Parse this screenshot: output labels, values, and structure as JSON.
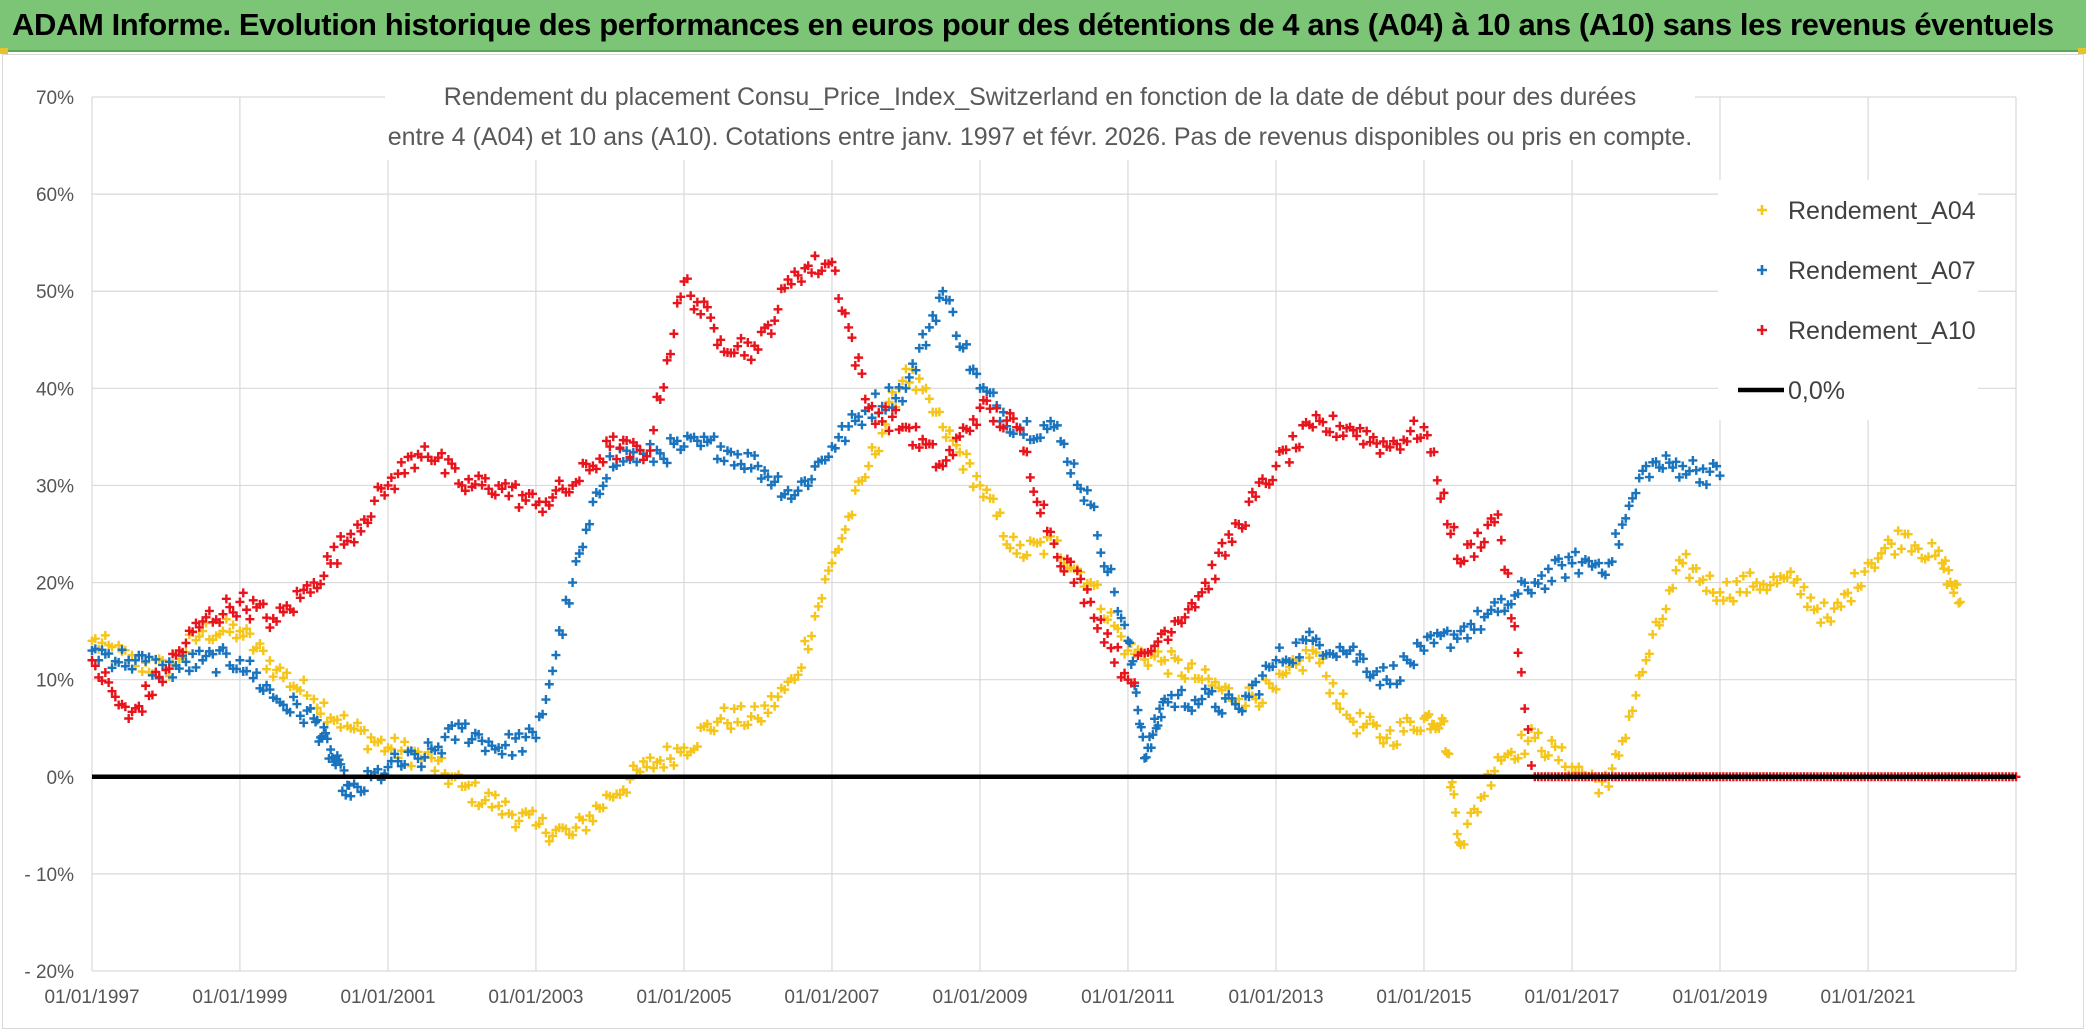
{
  "header": {
    "title": "ADAM Informe. Evolution historique des performances en euros pour des détentions de 4 ans (A04) à 10 ans (A10) sans les revenus éventuels"
  },
  "colors": {
    "banner": "#7cc576",
    "a04": "#f5c51a",
    "a07": "#1a73bd",
    "a10": "#e8141c",
    "zero": "#000000",
    "grid": "#d9d9d9"
  },
  "chart_data": {
    "type": "scatter",
    "subtitle_lines": [
      "Rendement du placement Consu_Price_Index_Switzerland en fonction de la date de début pour des durées",
      "entre 4 (A04) et 10 ans (A10). Cotations entre janv. 1997 et févr. 2026. Pas de revenus disponibles ou pris en compte."
    ],
    "xlim": [
      "1997-01-01",
      "2023-01-01"
    ],
    "ylim": [
      -20,
      70
    ],
    "y_ticks": [
      -20,
      -10,
      0,
      10,
      20,
      30,
      40,
      50,
      60,
      70
    ],
    "y_tick_labels": [
      "- 20%",
      "- 10%",
      "0%",
      "10%",
      "20%",
      "30%",
      "40%",
      "50%",
      "60%",
      "70%"
    ],
    "x_ticks": [
      "1997-01-01",
      "1999-01-01",
      "2001-01-01",
      "2003-01-01",
      "2005-01-01",
      "2007-01-01",
      "2009-01-01",
      "2011-01-01",
      "2013-01-01",
      "2015-01-01",
      "2017-01-01",
      "2019-01-01",
      "2021-01-01"
    ],
    "x_tick_labels": [
      "01/01/1997",
      "01/01/1999",
      "01/01/2001",
      "01/01/2003",
      "01/01/2005",
      "01/01/2007",
      "01/01/2009",
      "01/01/2011",
      "01/01/2013",
      "01/01/2015",
      "01/01/2017",
      "01/01/2019",
      "01/01/2021"
    ],
    "grid": true,
    "legend": {
      "placement": "top-right",
      "entries": [
        "Rendement_A04",
        "Rendement_A07",
        "Rendement_A10",
        "0,0%"
      ]
    },
    "series": [
      {
        "name": "Rendement_A04",
        "marker": "plus",
        "x": [
          "1997-01-01",
          "1997-07-01",
          "1998-01-01",
          "1998-07-01",
          "1999-01-01",
          "1999-07-01",
          "2000-01-01",
          "2000-07-01",
          "2001-01-01",
          "2001-07-01",
          "2002-01-01",
          "2002-07-01",
          "2003-01-01",
          "2003-07-01",
          "2004-01-01",
          "2004-07-01",
          "2005-01-01",
          "2005-07-01",
          "2006-01-01",
          "2006-07-01",
          "2007-01-01",
          "2007-07-01",
          "2008-01-01",
          "2008-07-01",
          "2009-01-01",
          "2009-07-01",
          "2010-01-01",
          "2010-07-01",
          "2011-01-01",
          "2011-07-01",
          "2012-01-01",
          "2012-07-01",
          "2013-01-01",
          "2013-07-01",
          "2014-01-01",
          "2014-07-01",
          "2015-01-01",
          "2015-04-01",
          "2015-07-01",
          "2016-01-01",
          "2016-07-01",
          "2017-01-01",
          "2017-07-01",
          "2018-01-01",
          "2018-07-01",
          "2019-01-01",
          "2019-07-01",
          "2020-01-01",
          "2020-07-01",
          "2021-01-01",
          "2021-07-01",
          "2022-01-01",
          "2022-04-01"
        ],
        "values": [
          14,
          12,
          11,
          15,
          15,
          11,
          8,
          5,
          3,
          2,
          -1,
          -3,
          -5,
          -6,
          -2,
          1,
          3,
          6,
          6,
          10,
          22,
          32,
          42,
          36,
          30,
          23,
          24,
          20,
          13,
          12,
          10,
          8,
          9,
          13,
          6,
          4,
          6,
          6,
          -7,
          2,
          4,
          1,
          -1,
          12,
          22,
          19,
          20,
          20,
          16,
          22,
          25,
          22,
          18
        ]
      },
      {
        "name": "Rendement_A07",
        "marker": "plus",
        "x": [
          "1997-01-01",
          "1997-07-01",
          "1998-01-01",
          "1998-07-01",
          "1999-01-01",
          "1999-07-01",
          "2000-01-01",
          "2000-04-01",
          "2000-07-01",
          "2001-01-01",
          "2001-07-01",
          "2002-01-01",
          "2002-07-01",
          "2003-01-01",
          "2003-07-01",
          "2004-01-01",
          "2004-07-01",
          "2005-01-01",
          "2005-07-01",
          "2006-01-01",
          "2006-07-01",
          "2007-01-01",
          "2007-07-01",
          "2008-01-01",
          "2008-07-01",
          "2009-01-01",
          "2009-07-01",
          "2010-01-01",
          "2010-07-01",
          "2011-01-01",
          "2011-04-01",
          "2011-07-01",
          "2012-01-01",
          "2012-07-01",
          "2013-01-01",
          "2013-07-01",
          "2014-01-01",
          "2014-07-01",
          "2015-01-01",
          "2015-07-01",
          "2016-01-01",
          "2016-07-01",
          "2017-01-01",
          "2017-07-01",
          "2018-01-01",
          "2018-07-01",
          "2019-01-01"
        ],
        "values": [
          13,
          12,
          11,
          12,
          12,
          8,
          6,
          2,
          -2,
          1,
          2,
          5,
          3,
          4,
          20,
          33,
          33,
          34,
          34,
          32,
          29,
          34,
          38,
          40,
          50,
          40,
          36,
          36,
          28,
          14,
          2,
          8,
          8,
          7,
          12,
          14,
          13,
          10,
          13,
          15,
          17,
          20,
          22,
          22,
          32,
          32,
          31
        ]
      },
      {
        "name": "Rendement_A10",
        "marker": "plus",
        "x": [
          "1997-01-01",
          "1997-07-01",
          "1998-01-01",
          "1998-07-01",
          "1999-01-01",
          "1999-07-01",
          "2000-01-01",
          "2000-07-01",
          "2001-01-01",
          "2001-07-01",
          "2002-01-01",
          "2002-07-01",
          "2003-01-01",
          "2003-07-01",
          "2004-01-01",
          "2004-07-01",
          "2005-01-01",
          "2005-07-01",
          "2006-01-01",
          "2006-07-01",
          "2007-01-01",
          "2007-07-01",
          "2008-01-01",
          "2008-07-01",
          "2009-01-01",
          "2009-07-01",
          "2010-01-01",
          "2010-07-01",
          "2011-01-01",
          "2011-07-01",
          "2012-01-01",
          "2012-07-01",
          "2013-01-01",
          "2013-07-01",
          "2014-01-01",
          "2014-07-01",
          "2015-01-01",
          "2015-07-01",
          "2016-01-01",
          "2016-07-01",
          "2017-01-01",
          "2017-07-01",
          "2018-01-01",
          "2018-07-01",
          "2019-01-01",
          "2019-07-01",
          "2020-01-01",
          "2020-07-01",
          "2021-01-01",
          "2021-07-01",
          "2022-01-01",
          "2022-07-01",
          "2023-01-01"
        ],
        "values": [
          12,
          6,
          11,
          16,
          18,
          16,
          20,
          25,
          30,
          34,
          30,
          30,
          28,
          30,
          34,
          33,
          51,
          45,
          44,
          52,
          53,
          38,
          36,
          32,
          38,
          36,
          24,
          18,
          10,
          15,
          19,
          26,
          32,
          36,
          36,
          34,
          36,
          22,
          27,
          0,
          0,
          0,
          0,
          0,
          0,
          0,
          0,
          0,
          0,
          0,
          0,
          0,
          0
        ]
      }
    ],
    "reference_line": {
      "name": "0,0%",
      "value": 0
    }
  }
}
